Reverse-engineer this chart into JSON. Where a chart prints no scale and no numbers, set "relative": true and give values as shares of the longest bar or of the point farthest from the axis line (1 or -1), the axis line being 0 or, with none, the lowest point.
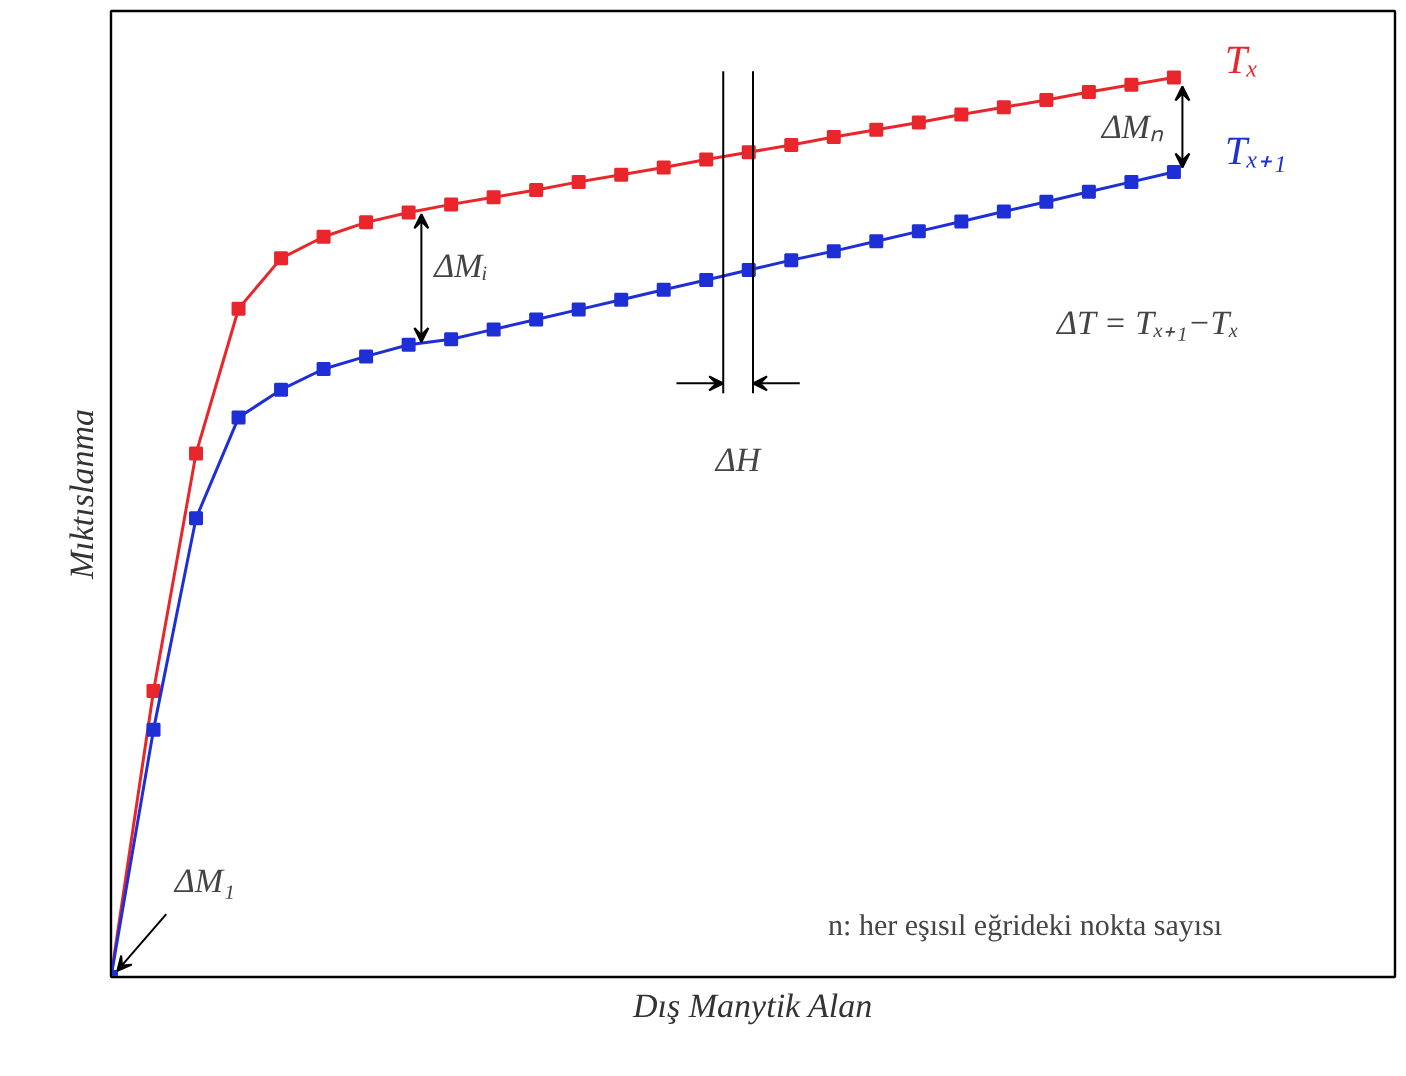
{
  "chart_data": {
    "type": "line",
    "relative": true,
    "xlabel": "Dış Manytik Alan",
    "ylabel": "Mıktıslanma",
    "categories": [
      null,
      null,
      null,
      null,
      null,
      null,
      null,
      null,
      null,
      null,
      null,
      null,
      null,
      null,
      null,
      null,
      null,
      null,
      null,
      null,
      null,
      null,
      null,
      null,
      null,
      null
    ],
    "series": [
      {
        "name": "Tₓ",
        "color": "#e8262b",
        "values": [
          0,
          0.318,
          0.582,
          0.743,
          0.799,
          0.823,
          0.839,
          0.85,
          0.859,
          0.867,
          0.875,
          0.884,
          0.892,
          0.9,
          0.909,
          0.917,
          0.925,
          0.934,
          0.942,
          0.95,
          0.959,
          0.967,
          0.975,
          0.984,
          0.992,
          1
        ]
      },
      {
        "name": "Tₓ₊₁",
        "color": "#1f2fd6",
        "values": [
          0,
          0.275,
          0.51,
          0.622,
          0.653,
          0.676,
          0.69,
          0.703,
          0.709,
          0.72,
          0.731,
          0.742,
          0.753,
          0.764,
          0.775,
          0.786,
          0.797,
          0.807,
          0.818,
          0.829,
          0.84,
          0.851,
          0.862,
          0.873,
          0.884,
          0.895
        ]
      }
    ],
    "annotations": [
      "ΔM₁",
      "ΔMᵢ",
      "ΔMₙ",
      "ΔH",
      "ΔT = Tₓ₊₁−Tₓ",
      "n: her eşısıl eğrideki nokta sayısı"
    ],
    "marker": "square",
    "line_style": "solid"
  }
}
